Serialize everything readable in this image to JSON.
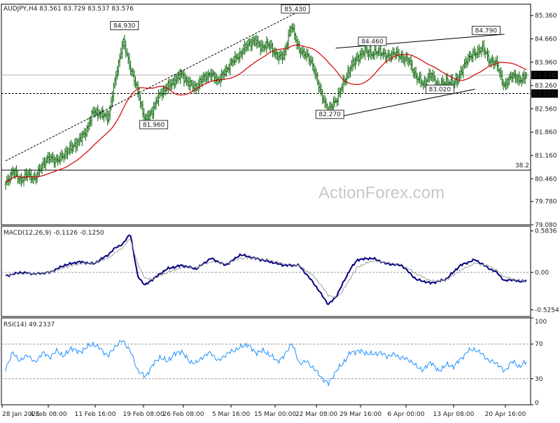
{
  "chart_data": [
    {
      "type": "candlestick",
      "panel": "price",
      "title": "AUDJPY,H4  83.561 83.729 83.537 83.576",
      "symbol": "AUDJPY",
      "timeframe": "H4",
      "ohlc_last": {
        "open": 83.561,
        "high": 83.729,
        "low": 83.537,
        "close": 83.576
      },
      "ylim": [
        79.08,
        85.7
      ],
      "y_ticks": [
        "85.360",
        "84.660",
        "83.960",
        "83.260",
        "82.560",
        "81.860",
        "81.160",
        "80.460",
        "79.780",
        "79.080"
      ],
      "current_price_label": "83.576",
      "support_label": "83.020",
      "fib_label": "38.2",
      "fib_level": 80.72,
      "annotations": [
        {
          "text": "84.930",
          "price": 84.93,
          "time": 16.2
        },
        {
          "text": "81.960",
          "price": 81.96,
          "time": 20.2
        },
        {
          "text": "85.430",
          "price": 85.43,
          "time": 39.5
        },
        {
          "text": "82.270",
          "price": 82.27,
          "time": 44.2
        },
        {
          "text": "84.460",
          "price": 84.46,
          "time": 50.0
        },
        {
          "text": "83.020",
          "price": 83.02,
          "time": 59.2
        },
        {
          "text": "84.790",
          "price": 84.79,
          "time": 65.5
        }
      ],
      "trendlines": [
        {
          "from": [
            0,
            81.0
          ],
          "to": [
            39.5,
            85.43
          ],
          "style": "dashed"
        },
        {
          "from": [
            44.2,
            82.27
          ],
          "to": [
            64.0,
            83.15
          ],
          "style": "solid"
        },
        {
          "from": [
            45.0,
            84.38
          ],
          "to": [
            68.0,
            84.8
          ],
          "style": "solid"
        }
      ],
      "moving_average_color": "#d40000",
      "bar_color": "#006000",
      "anchors": [
        [
          0,
          80.3
        ],
        [
          1,
          80.7
        ],
        [
          2,
          80.4
        ],
        [
          3,
          80.6
        ],
        [
          4,
          80.45
        ],
        [
          5,
          80.9
        ],
        [
          6,
          81.1
        ],
        [
          7,
          81.0
        ],
        [
          8,
          81.2
        ],
        [
          9,
          81.4
        ],
        [
          10,
          81.6
        ],
        [
          11,
          81.9
        ],
        [
          12,
          82.5
        ],
        [
          13,
          82.4
        ],
        [
          14,
          82.3
        ],
        [
          15,
          83.5
        ],
        [
          16,
          84.6
        ],
        [
          17,
          83.8
        ],
        [
          18,
          83.1
        ],
        [
          19,
          82.2
        ],
        [
          20,
          82.5
        ],
        [
          21,
          83.0
        ],
        [
          22,
          83.2
        ],
        [
          23,
          83.4
        ],
        [
          24,
          83.6
        ],
        [
          25,
          83.3
        ],
        [
          26,
          83.2
        ],
        [
          27,
          83.5
        ],
        [
          28,
          83.6
        ],
        [
          29,
          83.4
        ],
        [
          30,
          83.7
        ],
        [
          31,
          84.0
        ],
        [
          32,
          84.2
        ],
        [
          33,
          84.5
        ],
        [
          34,
          84.6
        ],
        [
          35,
          84.4
        ],
        [
          36,
          84.5
        ],
        [
          37,
          84.1
        ],
        [
          38,
          84.2
        ],
        [
          39,
          85.1
        ],
        [
          40,
          84.3
        ],
        [
          41,
          84.2
        ],
        [
          42,
          83.8
        ],
        [
          43,
          83.0
        ],
        [
          44,
          82.5
        ],
        [
          45,
          82.8
        ],
        [
          46,
          83.3
        ],
        [
          47,
          83.8
        ],
        [
          48,
          84.1
        ],
        [
          49,
          84.3
        ],
        [
          50,
          84.2
        ],
        [
          51,
          84.3
        ],
        [
          52,
          84.1
        ],
        [
          53,
          84.25
        ],
        [
          54,
          84.1
        ],
        [
          55,
          84.0
        ],
        [
          56,
          83.5
        ],
        [
          57,
          83.3
        ],
        [
          58,
          83.6
        ],
        [
          59,
          83.2
        ],
        [
          60,
          83.4
        ],
        [
          61,
          83.3
        ],
        [
          62,
          83.6
        ],
        [
          63,
          84.1
        ],
        [
          64,
          84.2
        ],
        [
          65,
          84.4
        ],
        [
          66,
          84.0
        ],
        [
          67,
          83.9
        ],
        [
          68,
          83.2
        ],
        [
          69,
          83.6
        ],
        [
          70,
          83.4
        ],
        [
          71,
          83.576
        ]
      ]
    },
    {
      "type": "line",
      "panel": "macd",
      "title": "MACD(12,26,9) -0.1126 -0.1250",
      "ylim": [
        -0.62,
        0.65
      ],
      "y_ticks": [
        "0.5836",
        "0.00",
        "-0.5254"
      ],
      "series": [
        {
          "name": "MACD",
          "color": "#000080",
          "anchors": [
            [
              0,
              -0.05
            ],
            [
              2,
              0.0
            ],
            [
              4,
              -0.02
            ],
            [
              6,
              0.0
            ],
            [
              8,
              0.1
            ],
            [
              10,
              0.15
            ],
            [
              12,
              0.12
            ],
            [
              14,
              0.25
            ],
            [
              15,
              0.35
            ],
            [
              16,
              0.4
            ],
            [
              17,
              0.55
            ],
            [
              18,
              -0.05
            ],
            [
              19,
              -0.18
            ],
            [
              20,
              -0.1
            ],
            [
              22,
              0.05
            ],
            [
              24,
              0.1
            ],
            [
              26,
              0.05
            ],
            [
              28,
              0.2
            ],
            [
              30,
              0.1
            ],
            [
              32,
              0.25
            ],
            [
              34,
              0.2
            ],
            [
              36,
              0.15
            ],
            [
              38,
              0.1
            ],
            [
              40,
              0.1
            ],
            [
              42,
              -0.15
            ],
            [
              43,
              -0.3
            ],
            [
              44,
              -0.45
            ],
            [
              45,
              -0.35
            ],
            [
              46,
              -0.15
            ],
            [
              47,
              0.05
            ],
            [
              48,
              0.18
            ],
            [
              50,
              0.2
            ],
            [
              52,
              0.12
            ],
            [
              54,
              0.1
            ],
            [
              56,
              -0.1
            ],
            [
              58,
              -0.15
            ],
            [
              60,
              -0.1
            ],
            [
              62,
              0.1
            ],
            [
              64,
              0.18
            ],
            [
              66,
              0.05
            ],
            [
              67,
              0.0
            ],
            [
              68,
              -0.12
            ],
            [
              69,
              -0.1
            ],
            [
              70,
              -0.13
            ],
            [
              71,
              -0.11
            ]
          ]
        },
        {
          "name": "Signal",
          "color": "#a0a0a0",
          "anchors": [
            [
              0,
              -0.04
            ],
            [
              2,
              -0.02
            ],
            [
              4,
              -0.01
            ],
            [
              6,
              0.0
            ],
            [
              8,
              0.07
            ],
            [
              10,
              0.12
            ],
            [
              12,
              0.13
            ],
            [
              14,
              0.2
            ],
            [
              15,
              0.28
            ],
            [
              16,
              0.35
            ],
            [
              17,
              0.48
            ],
            [
              18,
              0.12
            ],
            [
              19,
              -0.08
            ],
            [
              20,
              -0.1
            ],
            [
              22,
              0.0
            ],
            [
              24,
              0.07
            ],
            [
              26,
              0.07
            ],
            [
              28,
              0.15
            ],
            [
              30,
              0.12
            ],
            [
              32,
              0.2
            ],
            [
              34,
              0.2
            ],
            [
              36,
              0.17
            ],
            [
              38,
              0.12
            ],
            [
              40,
              0.1
            ],
            [
              42,
              -0.05
            ],
            [
              43,
              -0.18
            ],
            [
              44,
              -0.32
            ],
            [
              45,
              -0.36
            ],
            [
              46,
              -0.25
            ],
            [
              47,
              -0.08
            ],
            [
              48,
              0.08
            ],
            [
              50,
              0.16
            ],
            [
              52,
              0.14
            ],
            [
              54,
              0.11
            ],
            [
              56,
              -0.02
            ],
            [
              58,
              -0.12
            ],
            [
              60,
              -0.11
            ],
            [
              62,
              0.03
            ],
            [
              64,
              0.13
            ],
            [
              66,
              0.09
            ],
            [
              67,
              0.03
            ],
            [
              68,
              -0.06
            ],
            [
              69,
              -0.09
            ],
            [
              70,
              -0.11
            ],
            [
              71,
              -0.125
            ]
          ]
        }
      ]
    },
    {
      "type": "line",
      "panel": "rsi",
      "title": "RSI(14) 49.2337",
      "ylim": [
        0,
        100
      ],
      "y_ticks": [
        "100",
        "70",
        "30",
        "0"
      ],
      "guides": [
        70,
        30
      ],
      "series": [
        {
          "name": "RSI",
          "color": "#1e90ff",
          "anchors": [
            [
              0,
              42
            ],
            [
              1,
              60
            ],
            [
              2,
              50
            ],
            [
              3,
              58
            ],
            [
              4,
              48
            ],
            [
              5,
              60
            ],
            [
              6,
              55
            ],
            [
              7,
              62
            ],
            [
              8,
              56
            ],
            [
              9,
              66
            ],
            [
              10,
              60
            ],
            [
              11,
              66
            ],
            [
              12,
              70
            ],
            [
              13,
              64
            ],
            [
              14,
              56
            ],
            [
              15,
              68
            ],
            [
              16,
              74
            ],
            [
              17,
              62
            ],
            [
              18,
              40
            ],
            [
              19,
              32
            ],
            [
              20,
              45
            ],
            [
              21,
              55
            ],
            [
              22,
              50
            ],
            [
              23,
              58
            ],
            [
              24,
              62
            ],
            [
              25,
              50
            ],
            [
              26,
              48
            ],
            [
              27,
              56
            ],
            [
              28,
              60
            ],
            [
              29,
              50
            ],
            [
              30,
              58
            ],
            [
              31,
              62
            ],
            [
              32,
              66
            ],
            [
              33,
              70
            ],
            [
              34,
              60
            ],
            [
              35,
              62
            ],
            [
              36,
              58
            ],
            [
              37,
              50
            ],
            [
              38,
              56
            ],
            [
              39,
              72
            ],
            [
              40,
              48
            ],
            [
              41,
              50
            ],
            [
              42,
              42
            ],
            [
              43,
              32
            ],
            [
              44,
              24
            ],
            [
              45,
              38
            ],
            [
              46,
              48
            ],
            [
              47,
              60
            ],
            [
              48,
              62
            ],
            [
              49,
              60
            ],
            [
              50,
              58
            ],
            [
              51,
              60
            ],
            [
              52,
              56
            ],
            [
              53,
              58
            ],
            [
              54,
              54
            ],
            [
              55,
              52
            ],
            [
              56,
              44
            ],
            [
              57,
              40
            ],
            [
              58,
              50
            ],
            [
              59,
              38
            ],
            [
              60,
              46
            ],
            [
              61,
              44
            ],
            [
              62,
              52
            ],
            [
              63,
              62
            ],
            [
              64,
              64
            ],
            [
              65,
              58
            ],
            [
              66,
              50
            ],
            [
              67,
              48
            ],
            [
              68,
              38
            ],
            [
              69,
              50
            ],
            [
              70,
              44
            ],
            [
              71,
              49.2
            ]
          ]
        }
      ]
    }
  ],
  "x_axis_labels": [
    "28 Jan 2021",
    "4 Feb 08:00",
    "11 Feb 16:00",
    "19 Feb 08:00",
    "26 Feb 08:00",
    "5 Mar 16:00",
    "15 Mar 00:00",
    "22 Mar 08:00",
    "29 Mar 16:00",
    "6 Apr 00:00",
    "13 Apr 08:00",
    "20 Apr 16:00"
  ],
  "watermark": "ActionForex.com",
  "colors": {
    "accent": "#000080",
    "price_tag_bg": "#000000",
    "price_tag_fg": "#ffffff"
  }
}
